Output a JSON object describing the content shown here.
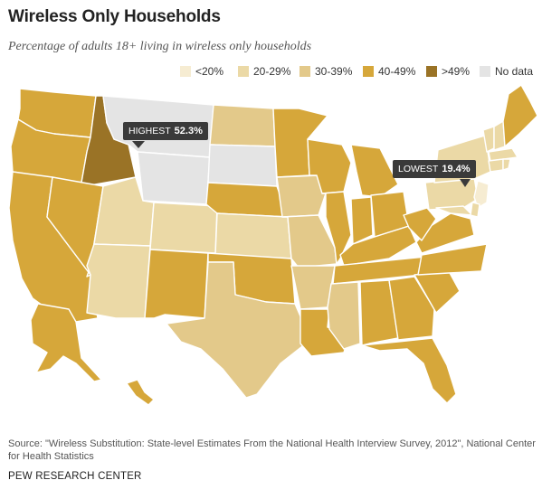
{
  "header": {
    "title": "Wireless Only Households",
    "subtitle": "Percentage of adults 18+ living in wireless only households"
  },
  "legend": [
    {
      "label": "<20%",
      "color": "#f6ecd2"
    },
    {
      "label": "20-29%",
      "color": "#ebd9a6"
    },
    {
      "label": "30-39%",
      "color": "#e3c98a"
    },
    {
      "label": "40-49%",
      "color": "#d6a73a"
    },
    {
      "label": ">49%",
      "color": "#9a7326"
    },
    {
      "label": "No data",
      "color": "#e4e4e4"
    }
  ],
  "callouts": {
    "highest": {
      "label": "HIGHEST",
      "value": "52.3%"
    },
    "lowest": {
      "label": "LOWEST",
      "value": "19.4%"
    }
  },
  "map_data": {
    "ID": ">49%",
    "WA": "40-49%",
    "OR": "40-49%",
    "CA": "40-49%",
    "NV": "40-49%",
    "MT": "No data",
    "WY": "No data",
    "SD": "No data",
    "UT": "20-29%",
    "CO": "20-29%",
    "AZ": "20-29%",
    "KS": "20-29%",
    "NM": "40-49%",
    "TX": "30-39%",
    "OK": "40-49%",
    "NE": "40-49%",
    "ND": "30-39%",
    "MN": "40-49%",
    "IA": "30-39%",
    "MO": "30-39%",
    "AR": "30-39%",
    "LA": "40-49%",
    "WI": "40-49%",
    "IL": "40-49%",
    "MI": "40-49%",
    "IN": "40-49%",
    "OH": "40-49%",
    "KY": "40-49%",
    "TN": "40-49%",
    "MS": "30-39%",
    "AL": "40-49%",
    "GA": "40-49%",
    "FL": "40-49%",
    "SC": "40-49%",
    "NC": "40-49%",
    "VA": "40-49%",
    "WV": "40-49%",
    "PA": "20-29%",
    "NY": "20-29%",
    "NJ": "<20%",
    "ME": "40-49%",
    "VT": "20-29%",
    "NH": "20-29%",
    "MA": "20-29%",
    "CT": "20-29%",
    "RI": "20-29%",
    "DE": "20-29%",
    "MD": "20-29%",
    "AK": "40-49%",
    "HI": "40-49%"
  },
  "source": "Source: \"Wireless Substitution: State-level Estimates From the National Health Interview Survey, 2012\", National Center for Health Statistics",
  "footer": "PEW RESEARCH CENTER"
}
